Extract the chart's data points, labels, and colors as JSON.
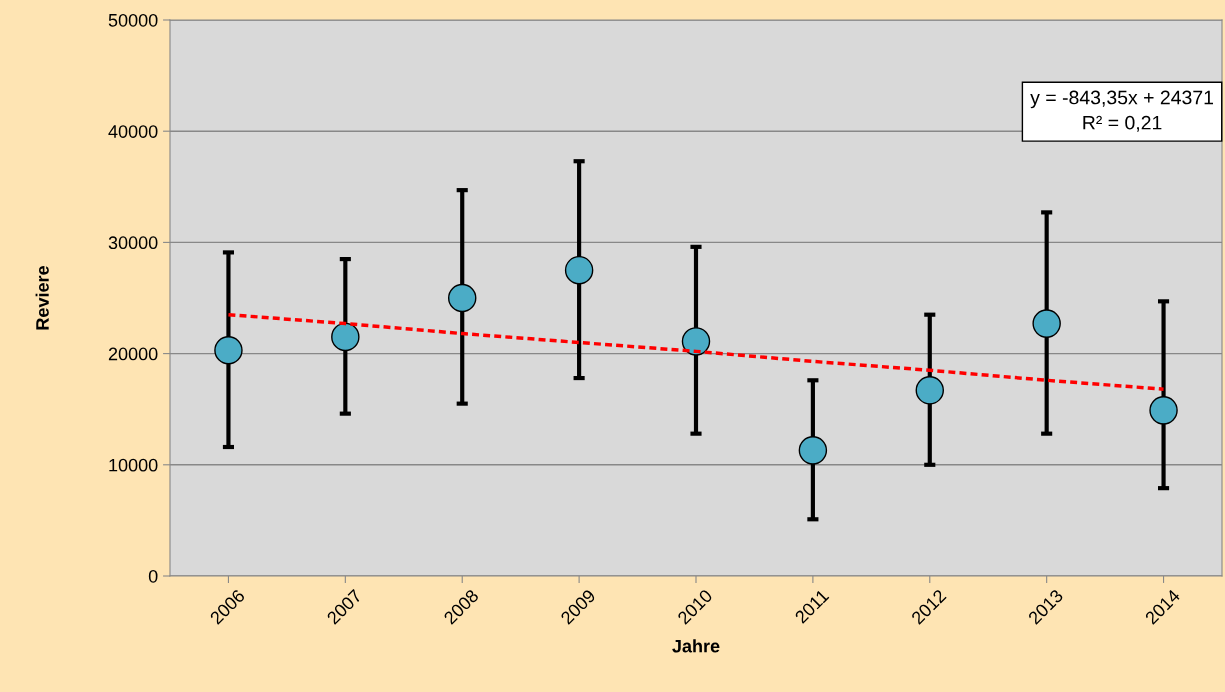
{
  "chart_data": {
    "type": "scatter",
    "xlabel": "Jahre",
    "ylabel": "Reviere",
    "categories": [
      "2006",
      "2007",
      "2008",
      "2009",
      "2010",
      "2011",
      "2012",
      "2013",
      "2014"
    ],
    "series": [
      {
        "color": "#4bacc6",
        "marker": "circle",
        "values": [
          20300,
          21500,
          25000,
          27500,
          21100,
          11300,
          16700,
          22700,
          14900
        ],
        "errors": [
          [
            11600,
            29100
          ],
          [
            14600,
            28500
          ],
          [
            15500,
            34700
          ],
          [
            17800,
            37300
          ],
          [
            12800,
            29600
          ],
          [
            5100,
            17600
          ],
          [
            10000,
            23500
          ],
          [
            12800,
            32700
          ],
          [
            7900,
            24700
          ]
        ]
      },
      {
        "type": "line",
        "color": "#ff0000",
        "line_style": "dashed",
        "values": [
          23500,
          22700,
          21800,
          21000,
          20200,
          19300,
          18500,
          17600,
          16800
        ]
      }
    ],
    "ylim": [
      0,
      50000
    ],
    "yticks": [
      0,
      10000,
      20000,
      30000,
      40000,
      50000
    ],
    "grid": "y",
    "legend": false,
    "annotations": [
      "y = -843,35x + 24371\nR² = 0,21"
    ]
  }
}
